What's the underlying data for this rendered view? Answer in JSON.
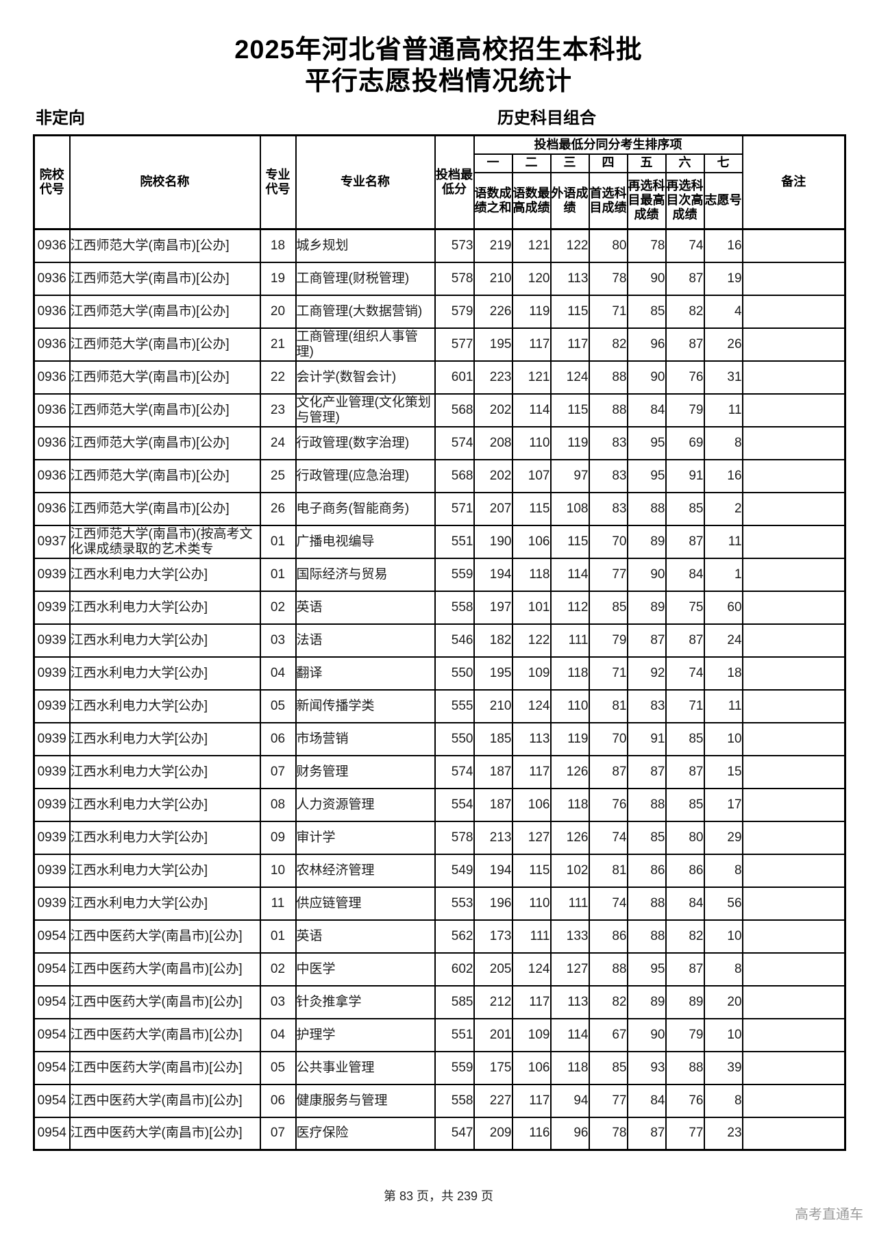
{
  "title": {
    "line1": "2025年河北省普通高校招生本科批",
    "line2": "平行志愿投档情况统计"
  },
  "subheaders": {
    "left": "非定向",
    "right": "历史科目组合"
  },
  "table": {
    "headers": {
      "college_code": "院校代号",
      "college_name": "院校名称",
      "major_code": "专业代号",
      "major_name": "专业名称",
      "min_score": "投档最低分",
      "tiebreak_group": "投档最低分同分考生排序项",
      "tiebreak_nums": [
        "一",
        "二",
        "三",
        "四",
        "五",
        "六",
        "七"
      ],
      "tiebreak_labels": [
        "语数成绩之和",
        "语数最高成绩",
        "外语成绩",
        "首选科目成绩",
        "再选科目最高成绩",
        "再选科目次高成绩",
        "志愿号"
      ],
      "remark": "备注"
    },
    "rows": [
      {
        "code": "0936",
        "college": "江西师范大学(南昌市)[公办]",
        "mcode": "18",
        "major": "城乡规划",
        "min": "573",
        "t": [
          "219",
          "121",
          "122",
          "80",
          "78",
          "74",
          "16"
        ],
        "remark": ""
      },
      {
        "code": "0936",
        "college": "江西师范大学(南昌市)[公办]",
        "mcode": "19",
        "major": "工商管理(财税管理)",
        "min": "578",
        "t": [
          "210",
          "120",
          "113",
          "78",
          "90",
          "87",
          "19"
        ],
        "remark": ""
      },
      {
        "code": "0936",
        "college": "江西师范大学(南昌市)[公办]",
        "mcode": "20",
        "major": "工商管理(大数据营销)",
        "min": "579",
        "t": [
          "226",
          "119",
          "115",
          "71",
          "85",
          "82",
          "4"
        ],
        "remark": ""
      },
      {
        "code": "0936",
        "college": "江西师范大学(南昌市)[公办]",
        "mcode": "21",
        "major": "工商管理(组织人事管理)",
        "min": "577",
        "t": [
          "195",
          "117",
          "117",
          "82",
          "96",
          "87",
          "26"
        ],
        "remark": ""
      },
      {
        "code": "0936",
        "college": "江西师范大学(南昌市)[公办]",
        "mcode": "22",
        "major": "会计学(数智会计)",
        "min": "601",
        "t": [
          "223",
          "121",
          "124",
          "88",
          "90",
          "76",
          "31"
        ],
        "remark": ""
      },
      {
        "code": "0936",
        "college": "江西师范大学(南昌市)[公办]",
        "mcode": "23",
        "major": "文化产业管理(文化策划与管理)",
        "min": "568",
        "t": [
          "202",
          "114",
          "115",
          "88",
          "84",
          "79",
          "11"
        ],
        "remark": ""
      },
      {
        "code": "0936",
        "college": "江西师范大学(南昌市)[公办]",
        "mcode": "24",
        "major": "行政管理(数字治理)",
        "min": "574",
        "t": [
          "208",
          "110",
          "119",
          "83",
          "95",
          "69",
          "8"
        ],
        "remark": ""
      },
      {
        "code": "0936",
        "college": "江西师范大学(南昌市)[公办]",
        "mcode": "25",
        "major": "行政管理(应急治理)",
        "min": "568",
        "t": [
          "202",
          "107",
          "97",
          "83",
          "95",
          "91",
          "16"
        ],
        "remark": ""
      },
      {
        "code": "0936",
        "college": "江西师范大学(南昌市)[公办]",
        "mcode": "26",
        "major": "电子商务(智能商务)",
        "min": "571",
        "t": [
          "207",
          "115",
          "108",
          "83",
          "88",
          "85",
          "2"
        ],
        "remark": ""
      },
      {
        "code": "0937",
        "college": "江西师范大学(南昌市)(按高考文化课成绩录取的艺术类专",
        "mcode": "01",
        "major": "广播电视编导",
        "min": "551",
        "t": [
          "190",
          "106",
          "115",
          "70",
          "89",
          "87",
          "11"
        ],
        "remark": ""
      },
      {
        "code": "0939",
        "college": "江西水利电力大学[公办]",
        "mcode": "01",
        "major": "国际经济与贸易",
        "min": "559",
        "t": [
          "194",
          "118",
          "114",
          "77",
          "90",
          "84",
          "1"
        ],
        "remark": ""
      },
      {
        "code": "0939",
        "college": "江西水利电力大学[公办]",
        "mcode": "02",
        "major": "英语",
        "min": "558",
        "t": [
          "197",
          "101",
          "112",
          "85",
          "89",
          "75",
          "60"
        ],
        "remark": ""
      },
      {
        "code": "0939",
        "college": "江西水利电力大学[公办]",
        "mcode": "03",
        "major": "法语",
        "min": "546",
        "t": [
          "182",
          "122",
          "111",
          "79",
          "87",
          "87",
          "24"
        ],
        "remark": ""
      },
      {
        "code": "0939",
        "college": "江西水利电力大学[公办]",
        "mcode": "04",
        "major": "翻译",
        "min": "550",
        "t": [
          "195",
          "109",
          "118",
          "71",
          "92",
          "74",
          "18"
        ],
        "remark": ""
      },
      {
        "code": "0939",
        "college": "江西水利电力大学[公办]",
        "mcode": "05",
        "major": "新闻传播学类",
        "min": "555",
        "t": [
          "210",
          "124",
          "110",
          "81",
          "83",
          "71",
          "11"
        ],
        "remark": ""
      },
      {
        "code": "0939",
        "college": "江西水利电力大学[公办]",
        "mcode": "06",
        "major": "市场营销",
        "min": "550",
        "t": [
          "185",
          "113",
          "119",
          "70",
          "91",
          "85",
          "10"
        ],
        "remark": ""
      },
      {
        "code": "0939",
        "college": "江西水利电力大学[公办]",
        "mcode": "07",
        "major": "财务管理",
        "min": "574",
        "t": [
          "187",
          "117",
          "126",
          "87",
          "87",
          "87",
          "15"
        ],
        "remark": ""
      },
      {
        "code": "0939",
        "college": "江西水利电力大学[公办]",
        "mcode": "08",
        "major": "人力资源管理",
        "min": "554",
        "t": [
          "187",
          "106",
          "118",
          "76",
          "88",
          "85",
          "17"
        ],
        "remark": ""
      },
      {
        "code": "0939",
        "college": "江西水利电力大学[公办]",
        "mcode": "09",
        "major": "审计学",
        "min": "578",
        "t": [
          "213",
          "127",
          "126",
          "74",
          "85",
          "80",
          "29"
        ],
        "remark": ""
      },
      {
        "code": "0939",
        "college": "江西水利电力大学[公办]",
        "mcode": "10",
        "major": "农林经济管理",
        "min": "549",
        "t": [
          "194",
          "115",
          "102",
          "81",
          "86",
          "86",
          "8"
        ],
        "remark": ""
      },
      {
        "code": "0939",
        "college": "江西水利电力大学[公办]",
        "mcode": "11",
        "major": "供应链管理",
        "min": "553",
        "t": [
          "196",
          "110",
          "111",
          "74",
          "88",
          "84",
          "56"
        ],
        "remark": ""
      },
      {
        "code": "0954",
        "college": "江西中医药大学(南昌市)[公办]",
        "mcode": "01",
        "major": "英语",
        "min": "562",
        "t": [
          "173",
          "111",
          "133",
          "86",
          "88",
          "82",
          "10"
        ],
        "remark": ""
      },
      {
        "code": "0954",
        "college": "江西中医药大学(南昌市)[公办]",
        "mcode": "02",
        "major": "中医学",
        "min": "602",
        "t": [
          "205",
          "124",
          "127",
          "88",
          "95",
          "87",
          "8"
        ],
        "remark": ""
      },
      {
        "code": "0954",
        "college": "江西中医药大学(南昌市)[公办]",
        "mcode": "03",
        "major": "针灸推拿学",
        "min": "585",
        "t": [
          "212",
          "117",
          "113",
          "82",
          "89",
          "89",
          "20"
        ],
        "remark": ""
      },
      {
        "code": "0954",
        "college": "江西中医药大学(南昌市)[公办]",
        "mcode": "04",
        "major": "护理学",
        "min": "551",
        "t": [
          "201",
          "109",
          "114",
          "67",
          "90",
          "79",
          "10"
        ],
        "remark": ""
      },
      {
        "code": "0954",
        "college": "江西中医药大学(南昌市)[公办]",
        "mcode": "05",
        "major": "公共事业管理",
        "min": "559",
        "t": [
          "175",
          "106",
          "118",
          "85",
          "93",
          "88",
          "39"
        ],
        "remark": ""
      },
      {
        "code": "0954",
        "college": "江西中医药大学(南昌市)[公办]",
        "mcode": "06",
        "major": "健康服务与管理",
        "min": "558",
        "t": [
          "227",
          "117",
          "94",
          "77",
          "84",
          "76",
          "8"
        ],
        "remark": ""
      },
      {
        "code": "0954",
        "college": "江西中医药大学(南昌市)[公办]",
        "mcode": "07",
        "major": "医疗保险",
        "min": "547",
        "t": [
          "209",
          "116",
          "96",
          "78",
          "87",
          "77",
          "23"
        ],
        "remark": ""
      }
    ]
  },
  "footer": {
    "page": "第 83 页，共 239 页",
    "brand": "高考直通车"
  }
}
